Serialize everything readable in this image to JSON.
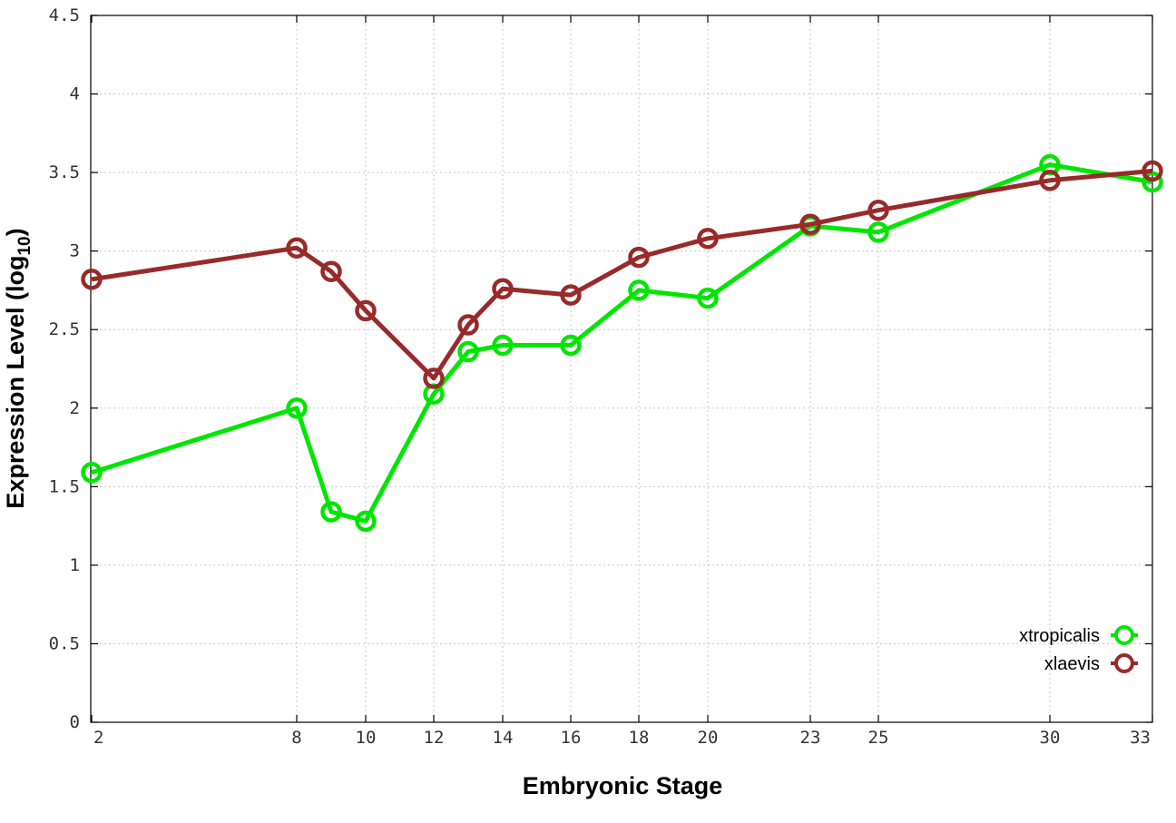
{
  "chart_data": {
    "type": "line",
    "title": "",
    "xlabel": "Embryonic Stage",
    "ylabel_main": "Expression Level (log",
    "ylabel_sub": "10",
    "ylabel_close": ")",
    "x_ticks": [
      2,
      8,
      10,
      12,
      14,
      16,
      18,
      20,
      23,
      25,
      30,
      33
    ],
    "y_ticks": [
      "0",
      "0.5",
      "1",
      "1.5",
      "2",
      "2.5",
      "3",
      "3.5",
      "4",
      "4.5"
    ],
    "xlim": [
      2,
      33
    ],
    "ylim": [
      0,
      4.5
    ],
    "grid": true,
    "legend_position": "bottom-right",
    "series": [
      {
        "name": "xtropicalis",
        "color": "#00e600",
        "x": [
          2,
          8,
          9,
          10,
          12,
          13,
          14,
          16,
          18,
          20,
          23,
          25,
          30,
          33
        ],
        "values": [
          1.59,
          2.0,
          1.34,
          1.28,
          2.09,
          2.36,
          2.4,
          2.4,
          2.75,
          2.7,
          3.16,
          3.12,
          3.55,
          3.44
        ]
      },
      {
        "name": "xlaevis",
        "color": "#992a2a",
        "x": [
          2,
          8,
          9,
          10,
          12,
          13,
          14,
          16,
          18,
          20,
          23,
          25,
          30,
          33
        ],
        "values": [
          2.82,
          3.02,
          2.87,
          2.62,
          2.19,
          2.53,
          2.76,
          2.72,
          2.96,
          3.08,
          3.17,
          3.26,
          3.45,
          3.51
        ]
      }
    ]
  }
}
